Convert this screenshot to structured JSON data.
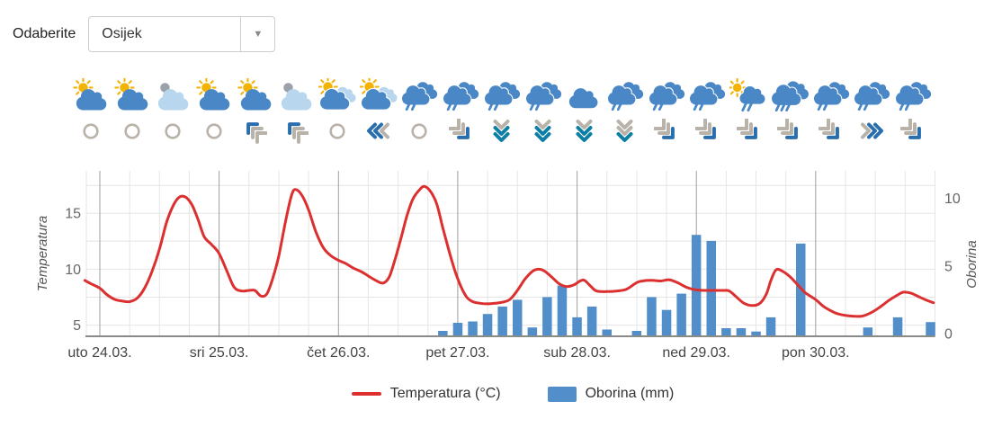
{
  "selector": {
    "label": "Odaberite",
    "value": "Osijek"
  },
  "icons": {
    "weather": [
      "sun-cloud",
      "sun-cloud",
      "gray-sun-cloud",
      "sun-cloud",
      "sun-cloud",
      "gray-sun-cloud",
      "sun-two-clouds",
      "sun-two-clouds",
      "rain",
      "rain",
      "rain",
      "rain",
      "cloud",
      "rain",
      "rain",
      "rain",
      "sun-rain",
      "rain-heavy",
      "rain",
      "rain",
      "rain"
    ],
    "wind": [
      {
        "type": "calm"
      },
      {
        "type": "calm"
      },
      {
        "type": "calm"
      },
      {
        "type": "calm"
      },
      {
        "type": "arrows",
        "dir": "nw",
        "colors": [
          "grey",
          "grey",
          "blue"
        ]
      },
      {
        "type": "arrows",
        "dir": "nw",
        "colors": [
          "grey",
          "grey",
          "blue"
        ]
      },
      {
        "type": "calm"
      },
      {
        "type": "arrows",
        "dir": "w",
        "colors": [
          "grey",
          "blue",
          "blue"
        ]
      },
      {
        "type": "calm"
      },
      {
        "type": "arrows",
        "dir": "se",
        "colors": [
          "grey",
          "grey",
          "blue"
        ]
      },
      {
        "type": "arrows",
        "dir": "s",
        "colors": [
          "grey",
          "teal",
          "teal"
        ]
      },
      {
        "type": "arrows",
        "dir": "s",
        "colors": [
          "grey",
          "teal",
          "teal"
        ]
      },
      {
        "type": "arrows",
        "dir": "s",
        "colors": [
          "grey",
          "teal",
          "teal"
        ]
      },
      {
        "type": "arrows",
        "dir": "s",
        "colors": [
          "grey",
          "grey",
          "teal"
        ]
      },
      {
        "type": "arrows",
        "dir": "se",
        "colors": [
          "grey",
          "grey",
          "blue"
        ]
      },
      {
        "type": "arrows",
        "dir": "se",
        "colors": [
          "grey",
          "grey",
          "blue"
        ]
      },
      {
        "type": "arrows",
        "dir": "se",
        "colors": [
          "grey",
          "grey",
          "blue"
        ]
      },
      {
        "type": "arrows",
        "dir": "se",
        "colors": [
          "grey",
          "grey",
          "blue"
        ]
      },
      {
        "type": "arrows",
        "dir": "se",
        "colors": [
          "grey",
          "grey",
          "blue"
        ]
      },
      {
        "type": "arrows",
        "dir": "e",
        "colors": [
          "grey",
          "blue",
          "blue"
        ]
      },
      {
        "type": "arrows",
        "dir": "se",
        "colors": [
          "grey",
          "grey",
          "blue"
        ]
      }
    ],
    "palette": {
      "cloud_blue": "#4a87c6",
      "cloud_light": "#b8d7ee",
      "sun_yellow": "#f2b305",
      "sun_gray": "#9aa1a8",
      "wind_grey": "#b9b2a9",
      "wind_teal": "#0d7fa6",
      "wind_blue": "#2a6fad"
    }
  },
  "chart_data": {
    "type": "line+bar",
    "x_unit_hours": 3,
    "slots_per_day": 8,
    "x_range_slots": [
      -1,
      56
    ],
    "days": [
      "uto 24.03.",
      "sri 25.03.",
      "čet 26.03.",
      "pet 27.03.",
      "sub 28.03.",
      "ned 29.03.",
      "pon 30.03."
    ],
    "y_left": {
      "title": "Temperatura",
      "ticks": [
        5,
        10,
        15
      ],
      "min": 4.0,
      "max": 18.8,
      "gridline_temps": [
        5,
        7.5,
        10,
        12.5,
        15,
        17.5
      ]
    },
    "y_right": {
      "title": "Oborina",
      "ticks": [
        0,
        5,
        10
      ],
      "min": -0.2,
      "max": 12.03
    },
    "legend": [
      "Temperatura (°C)",
      "Oborina (mm)"
    ],
    "series": [
      {
        "name": "Temperatura (°C)",
        "type": "line",
        "color": "#dc3030",
        "unit": "°C",
        "points": [
          [
            -1,
            9.0
          ],
          [
            -0.6,
            8.7
          ],
          [
            0,
            8.3
          ],
          [
            0.5,
            7.7
          ],
          [
            1,
            7.3
          ],
          [
            1.5,
            7.15
          ],
          [
            2,
            7.1
          ],
          [
            2.5,
            7.4
          ],
          [
            3,
            8.3
          ],
          [
            3.5,
            9.8
          ],
          [
            4,
            11.8
          ],
          [
            4.5,
            14.3
          ],
          [
            5,
            15.9
          ],
          [
            5.4,
            16.5
          ],
          [
            5.8,
            16.4
          ],
          [
            6.2,
            15.7
          ],
          [
            6.6,
            14.4
          ],
          [
            7,
            12.9
          ],
          [
            7.5,
            12.2
          ],
          [
            8,
            11.4
          ],
          [
            8.5,
            9.9
          ],
          [
            9,
            8.4
          ],
          [
            9.5,
            8.05
          ],
          [
            10,
            8.1
          ],
          [
            10.4,
            8.1
          ],
          [
            10.8,
            7.6
          ],
          [
            11.2,
            7.8
          ],
          [
            11.6,
            9.2
          ],
          [
            12,
            11.2
          ],
          [
            12.5,
            14.6
          ],
          [
            12.9,
            16.8
          ],
          [
            13.2,
            17.1
          ],
          [
            13.6,
            16.5
          ],
          [
            14,
            15.3
          ],
          [
            14.5,
            13.3
          ],
          [
            15,
            11.9
          ],
          [
            15.5,
            11.2
          ],
          [
            16,
            10.8
          ],
          [
            16.5,
            10.5
          ],
          [
            17,
            10.1
          ],
          [
            17.5,
            9.8
          ],
          [
            18,
            9.4
          ],
          [
            18.5,
            9.0
          ],
          [
            19,
            8.76
          ],
          [
            19.4,
            9.3
          ],
          [
            19.8,
            10.9
          ],
          [
            20.2,
            12.8
          ],
          [
            20.6,
            14.8
          ],
          [
            21,
            16.3
          ],
          [
            21.5,
            17.2
          ],
          [
            21.8,
            17.4
          ],
          [
            22.2,
            16.9
          ],
          [
            22.6,
            15.8
          ],
          [
            23,
            13.7
          ],
          [
            23.4,
            11.7
          ],
          [
            23.8,
            9.9
          ],
          [
            24.2,
            8.5
          ],
          [
            24.6,
            7.5
          ],
          [
            25,
            7.1
          ],
          [
            25.5,
            6.95
          ],
          [
            26,
            6.9
          ],
          [
            26.5,
            6.95
          ],
          [
            27,
            7.05
          ],
          [
            27.5,
            7.3
          ],
          [
            28,
            8.1
          ],
          [
            28.5,
            9.1
          ],
          [
            29,
            9.8
          ],
          [
            29.4,
            10.0
          ],
          [
            29.8,
            9.85
          ],
          [
            30.3,
            9.3
          ],
          [
            30.8,
            8.7
          ],
          [
            31.3,
            8.45
          ],
          [
            31.8,
            8.6
          ],
          [
            32.2,
            8.95
          ],
          [
            32.5,
            9.0
          ],
          [
            32.9,
            8.5
          ],
          [
            33.3,
            8.05
          ],
          [
            34,
            8.0
          ],
          [
            34.7,
            8.05
          ],
          [
            35.3,
            8.2
          ],
          [
            36,
            8.8
          ],
          [
            36.4,
            8.95
          ],
          [
            37,
            9.0
          ],
          [
            37.6,
            8.95
          ],
          [
            38.2,
            9.05
          ],
          [
            38.8,
            8.75
          ],
          [
            39.4,
            8.35
          ],
          [
            40,
            8.15
          ],
          [
            40.6,
            8.1
          ],
          [
            41.2,
            8.1
          ],
          [
            41.8,
            8.1
          ],
          [
            42.2,
            8.05
          ],
          [
            42.7,
            7.5
          ],
          [
            43.2,
            6.95
          ],
          [
            43.8,
            6.75
          ],
          [
            44.3,
            7.0
          ],
          [
            44.7,
            7.8
          ],
          [
            45.0,
            9.0
          ],
          [
            45.35,
            9.95
          ],
          [
            45.8,
            9.8
          ],
          [
            46.3,
            9.3
          ],
          [
            46.8,
            8.6
          ],
          [
            47.3,
            7.9
          ],
          [
            48,
            7.28
          ],
          [
            48.5,
            6.7
          ],
          [
            49,
            6.3
          ],
          [
            49.5,
            6.0
          ],
          [
            50.3,
            5.82
          ],
          [
            51.1,
            5.8
          ],
          [
            51.7,
            6.1
          ],
          [
            52.3,
            6.6
          ],
          [
            52.9,
            7.2
          ],
          [
            53.5,
            7.7
          ],
          [
            53.9,
            7.95
          ],
          [
            54.4,
            7.85
          ],
          [
            54.9,
            7.55
          ],
          [
            55.4,
            7.25
          ],
          [
            55.9,
            7.0
          ]
        ]
      },
      {
        "name": "Oborina (mm)",
        "type": "bar",
        "color": "#528fca",
        "unit": "mm",
        "points": [
          [
            23,
            0.2
          ],
          [
            24,
            0.8
          ],
          [
            25,
            0.9
          ],
          [
            26,
            1.45
          ],
          [
            27,
            2.0
          ],
          [
            28,
            2.5
          ],
          [
            29,
            0.45
          ],
          [
            30,
            2.7
          ],
          [
            31,
            3.55
          ],
          [
            32,
            1.2
          ],
          [
            33,
            2.0
          ],
          [
            34,
            0.3
          ],
          [
            36,
            0.2
          ],
          [
            37,
            2.7
          ],
          [
            38,
            1.75
          ],
          [
            39,
            2.95
          ],
          [
            40,
            7.3
          ],
          [
            41,
            6.85
          ],
          [
            42,
            0.4
          ],
          [
            43,
            0.4
          ],
          [
            44,
            0.15
          ],
          [
            45,
            1.2
          ],
          [
            47,
            6.65
          ],
          [
            51.5,
            0.45
          ],
          [
            53.5,
            1.2
          ],
          [
            55.7,
            0.85
          ]
        ]
      }
    ],
    "layout": {
      "grid": true,
      "legend_position": "bottom",
      "colors": {
        "grid_light": "#e5e5e5",
        "grid_day": "#9e9e9e",
        "axis_line": "#8a8a8a",
        "tick_text": "#666666",
        "day_text": "#444444",
        "axis_title": "#555555"
      }
    }
  }
}
